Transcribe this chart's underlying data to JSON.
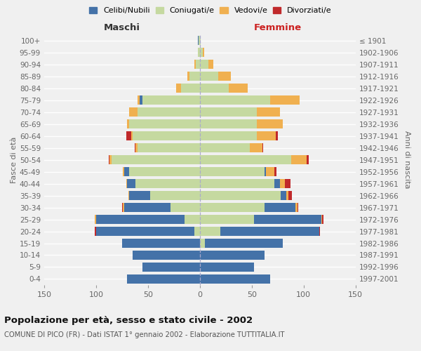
{
  "age_groups": [
    "0-4",
    "5-9",
    "10-14",
    "15-19",
    "20-24",
    "25-29",
    "30-34",
    "35-39",
    "40-44",
    "45-49",
    "50-54",
    "55-59",
    "60-64",
    "65-69",
    "70-74",
    "75-79",
    "80-84",
    "85-89",
    "90-94",
    "95-99",
    "100+"
  ],
  "birth_years": [
    "1997-2001",
    "1992-1996",
    "1987-1991",
    "1982-1986",
    "1977-1981",
    "1972-1976",
    "1967-1971",
    "1962-1966",
    "1957-1961",
    "1952-1956",
    "1947-1951",
    "1942-1946",
    "1937-1941",
    "1932-1936",
    "1927-1931",
    "1922-1926",
    "1917-1921",
    "1912-1916",
    "1907-1911",
    "1902-1906",
    "≤ 1901"
  ],
  "males": {
    "celibe": [
      70,
      55,
      65,
      75,
      95,
      85,
      45,
      20,
      8,
      5,
      0,
      0,
      0,
      0,
      0,
      3,
      0,
      0,
      0,
      0,
      1
    ],
    "coniugato": [
      0,
      0,
      0,
      0,
      5,
      15,
      28,
      48,
      62,
      68,
      85,
      60,
      65,
      68,
      60,
      55,
      18,
      10,
      4,
      2,
      1
    ],
    "vedovo": [
      0,
      0,
      0,
      0,
      0,
      1,
      1,
      1,
      1,
      1,
      2,
      2,
      1,
      2,
      8,
      2,
      5,
      2,
      1,
      0,
      0
    ],
    "divorziato": [
      0,
      0,
      0,
      0,
      1,
      0,
      1,
      0,
      0,
      0,
      1,
      1,
      5,
      0,
      0,
      0,
      0,
      0,
      0,
      0,
      0
    ]
  },
  "females": {
    "nubile": [
      68,
      52,
      62,
      75,
      95,
      65,
      30,
      5,
      5,
      2,
      0,
      0,
      0,
      0,
      0,
      0,
      0,
      0,
      0,
      0,
      0
    ],
    "coniugata": [
      0,
      0,
      0,
      5,
      20,
      52,
      62,
      78,
      72,
      62,
      88,
      48,
      55,
      55,
      55,
      68,
      28,
      18,
      8,
      3,
      1
    ],
    "vedova": [
      0,
      0,
      0,
      0,
      0,
      1,
      2,
      2,
      5,
      8,
      15,
      12,
      18,
      25,
      22,
      28,
      18,
      12,
      5,
      1,
      0
    ],
    "divorziata": [
      0,
      0,
      0,
      0,
      1,
      1,
      1,
      4,
      5,
      2,
      2,
      1,
      2,
      0,
      0,
      0,
      0,
      0,
      0,
      0,
      0
    ]
  },
  "colors": {
    "celibe": "#4472a8",
    "coniugato": "#c5d9a0",
    "vedovo": "#f0b050",
    "divorziato": "#c0292b"
  },
  "title": "Popolazione per età, sesso e stato civile - 2002",
  "subtitle": "COMUNE DI PICO (FR) - Dati ISTAT 1° gennaio 2002 - Elaborazione TUTTITALIA.IT",
  "xlabel_left": "Maschi",
  "xlabel_right": "Femmine",
  "ylabel_left": "Fasce di età",
  "ylabel_right": "Anni di nascita",
  "xlim": 150,
  "bg_color": "#f0f0f0",
  "grid_color": "#ffffff",
  "legend_labels": [
    "Celibi/Nubili",
    "Coniugati/e",
    "Vedovi/e",
    "Divorziati/e"
  ]
}
